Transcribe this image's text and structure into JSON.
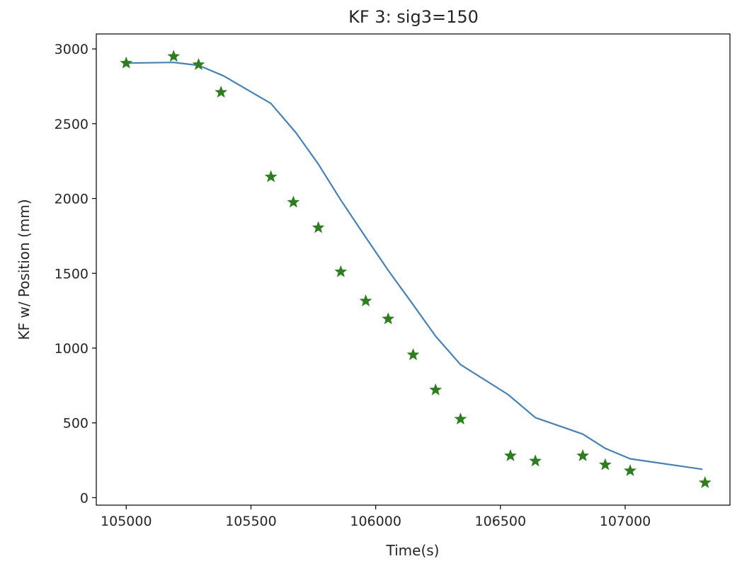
{
  "chart_data": {
    "type": "line",
    "title": "KF 3: sig3=150",
    "xlabel": "Time(s)",
    "ylabel": "KF w/ Position (mm)",
    "xlim": [
      104880,
      107420
    ],
    "ylim": [
      -50,
      3100
    ],
    "xticks": [
      105000,
      105500,
      106000,
      106500,
      107000
    ],
    "yticks": [
      0,
      500,
      1000,
      1500,
      2000,
      2500,
      3000
    ],
    "grid": false,
    "colors": {
      "line": "#4682b4",
      "marker": "#2e7d1e"
    },
    "series": [
      {
        "type": "line",
        "x": [
          105000,
          105190,
          105290,
          105390,
          105580,
          105680,
          105770,
          105860,
          105960,
          106050,
          106150,
          106240,
          106340,
          106530,
          106640,
          106830,
          106920,
          107020,
          107310
        ],
        "y": [
          2905,
          2910,
          2890,
          2820,
          2635,
          2440,
          2230,
          1990,
          1740,
          1520,
          1290,
          1080,
          890,
          690,
          535,
          425,
          330,
          260,
          190
        ]
      },
      {
        "type": "scatter",
        "marker": "star",
        "x": [
          105000,
          105190,
          105290,
          105380,
          105580,
          105670,
          105770,
          105860,
          105960,
          106050,
          106150,
          106240,
          106340,
          106540,
          106640,
          106830,
          106920,
          107020,
          107320
        ],
        "y": [
          2905,
          2950,
          2895,
          2710,
          2145,
          1975,
          1805,
          1510,
          1315,
          1195,
          955,
          720,
          525,
          280,
          245,
          280,
          220,
          180,
          100
        ]
      }
    ]
  }
}
